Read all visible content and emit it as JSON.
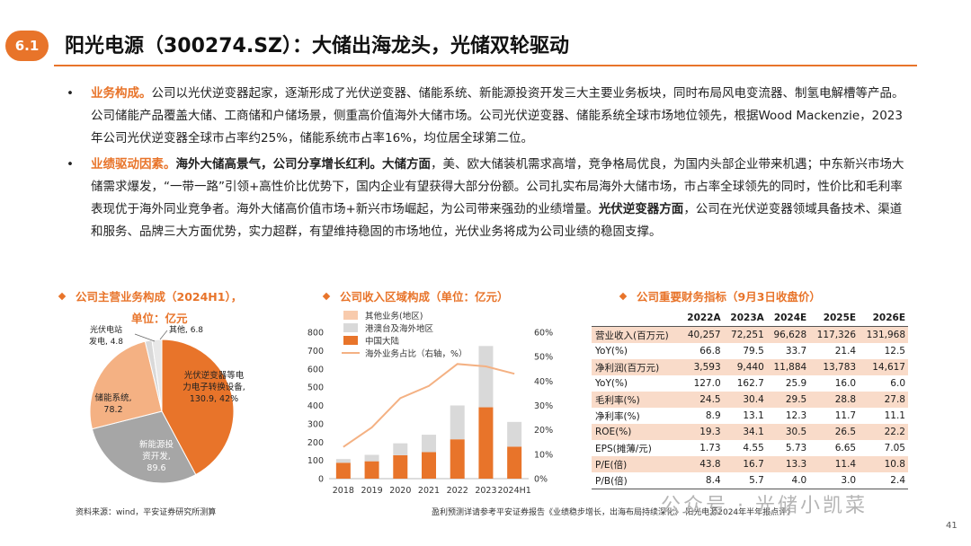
{
  "header": {
    "badge": "6.1",
    "title": "阳光电源（300274.SZ）：大储出海龙头，光储双轮驱动"
  },
  "bullets": [
    {
      "heading": "业务构成。",
      "text": "公司以光伏逆变器起家，逐渐形成了光伏逆变器、储能系统、新能源投资开发三大主要业务板块，同时布局风电变流器、制氢电解槽等产品。公司储能产品覆盖大储、工商储和户储场景，侧重高价值海外大储市场。公司光伏逆变器、储能系统全球市场地位领先，根据Wood Mackenzie，2023年公司光伏逆变器全球市占率约25%，储能系统市占率16%，均位居全球第二位。"
    },
    {
      "heading": "业绩驱动因素。",
      "b1": "海外大储高景气，公司分享增长红利。",
      "b2": "大储方面",
      "t1": "，美、欧大储装机需求高增，竞争格局优良，为国内头部企业带来机遇；中东新兴市场大储需求爆发，“一带一路”引领+高性价比优势下，国内企业有望获得大部分份额。公司扎实布局海外大储市场，市占率全球领先的同时，性价比和毛利率表现优于海外同业竞争者。海外大储高价值市场+新兴市场崛起，为公司带来强劲的业绩增量。",
      "b3": "光伏逆变器方面",
      "t2": "，公司在光伏逆变器领域具备技术、渠道和服务、品牌三大方面优势，实力超群，有望维持稳固的市场地位，光伏业务将成为公司业绩的稳固支撑。"
    }
  ],
  "pie": {
    "title_line1": "公司主营业务构成（2024H1），",
    "title_line2": "单位：亿元",
    "slices": [
      {
        "name": "光伏逆变器等电力电子转换设备",
        "label_lines": [
          "光伏逆变器等电",
          "力电子转换设备,",
          "130.9, 42%"
        ],
        "value": 130.9,
        "color": "#e8742a"
      },
      {
        "name": "新能源投资开发",
        "label_lines": [
          "新能源投",
          "资开发,",
          "89.6"
        ],
        "value": 89.6,
        "color": "#a6a6a6"
      },
      {
        "name": "储能系统",
        "label_lines": [
          "储能系统,",
          "78.2"
        ],
        "value": 78.2,
        "color": "#f4b183"
      },
      {
        "name": "光伏电站发电",
        "label_lines": [
          "光伏电站",
          "发电, 4.8"
        ],
        "value": 4.8,
        "color": "#d9d9d9"
      },
      {
        "name": "其他",
        "label_lines": [
          "其他, 6.8"
        ],
        "value": 6.8,
        "color": "#e8e8e8"
      }
    ]
  },
  "chart_data": {
    "type": "bar",
    "title": "公司收入区域构成（单位：亿元）",
    "categories": [
      "2018",
      "2019",
      "2020",
      "2021",
      "2022",
      "2023",
      "2024H1"
    ],
    "stacked": true,
    "series": [
      {
        "name": "中国大陆",
        "values": [
          87,
          95,
          128,
          145,
          215,
          390,
          175
        ],
        "color": "#e8742a"
      },
      {
        "name": "港澳台及海外地区",
        "values": [
          20,
          35,
          65,
          95,
          185,
          335,
          135
        ],
        "color": "#d9d9d9"
      },
      {
        "name": "其他业务(地区)",
        "values": [
          0,
          0,
          0,
          0,
          0,
          0,
          0
        ],
        "color": "#f8cbad"
      },
      {
        "name": "海外业务占比（右轴，%）",
        "type": "line",
        "axis": "right",
        "values": [
          13,
          21,
          33,
          38,
          47,
          46,
          43
        ],
        "color": "#f4b183"
      }
    ],
    "ylim": [
      0,
      800
    ],
    "y_ticks": [
      "0",
      "100",
      "200",
      "300",
      "400",
      "500",
      "600",
      "700",
      "800"
    ],
    "y2lim": [
      0,
      60
    ],
    "y2_ticks": [
      "0%",
      "10%",
      "20%",
      "30%",
      "40%",
      "50%",
      "60%"
    ]
  },
  "fin_table": {
    "title": "公司重要财务指标（9月3日收盘价）",
    "columns": [
      "",
      "2022A",
      "2023A",
      "2024E",
      "2025E",
      "2026E"
    ],
    "rows": [
      {
        "cells": [
          "营业收入(百万元)",
          "40,257",
          "72,251",
          "96,628",
          "117,326",
          "131,968"
        ],
        "shade": true
      },
      {
        "cells": [
          "YoY(%)",
          "66.8",
          "79.5",
          "33.7",
          "21.4",
          "12.5"
        ],
        "shade": false
      },
      {
        "cells": [
          "净利润(百万元)",
          "3,593",
          "9,440",
          "11,884",
          "13,783",
          "14,617"
        ],
        "shade": true
      },
      {
        "cells": [
          "YoY(%)",
          "127.0",
          "162.7",
          "25.9",
          "16.0",
          "6.0"
        ],
        "shade": false
      },
      {
        "cells": [
          "毛利率(%)",
          "24.5",
          "30.4",
          "29.5",
          "28.8",
          "27.8"
        ],
        "shade": true
      },
      {
        "cells": [
          "净利率(%)",
          "8.9",
          "13.1",
          "12.3",
          "11.7",
          "11.1"
        ],
        "shade": false
      },
      {
        "cells": [
          "ROE(%)",
          "19.3",
          "34.1",
          "30.5",
          "26.5",
          "22.2"
        ],
        "shade": true
      },
      {
        "cells": [
          "EPS(摊薄/元)",
          "1.73",
          "4.55",
          "5.73",
          "6.65",
          "7.05"
        ],
        "shade": false
      },
      {
        "cells": [
          "P/E(倍)",
          "43.8",
          "16.7",
          "13.3",
          "11.4",
          "10.8"
        ],
        "shade": true
      },
      {
        "cells": [
          "P/B(倍)",
          "8.4",
          "5.7",
          "4.0",
          "3.0",
          "2.4"
        ],
        "shade": false
      }
    ]
  },
  "sources": {
    "left": "资料来源：wind，平安证券研究所测算",
    "right": "盈利预测详请参考平安证券报告《业绩稳步增长，出海布局持续深化》-阳光电源2024年半年报点评》"
  },
  "watermark": "公众号 · 光储小凯菜",
  "page_number": "41",
  "colors": {
    "accent": "#e8742a",
    "light": "#f4b183",
    "grey": "#a6a6a6"
  }
}
